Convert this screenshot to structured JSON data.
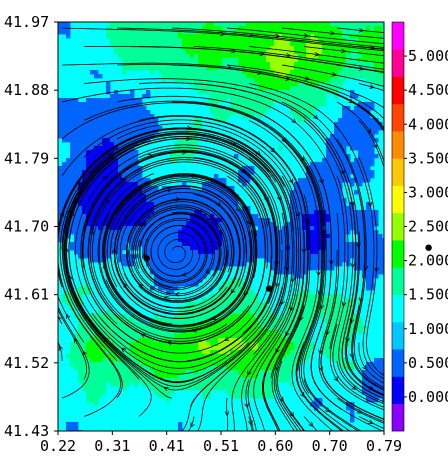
{
  "chart_data": {
    "type": "heatmap",
    "subtype": "field-with-streamlines",
    "title": "",
    "xlabel": "",
    "ylabel": "",
    "xlim": [
      0.22,
      0.79
    ],
    "ylim": [
      41.43,
      41.97
    ],
    "x_ticks": [
      "0.22",
      "0.31",
      "0.41",
      "0.51",
      "0.60",
      "0.70",
      "0.79"
    ],
    "y_ticks": [
      "41.43",
      "41.52",
      "41.61",
      "41.70",
      "41.79",
      "41.88",
      "41.97"
    ],
    "colorbar": {
      "labels": [
        "0.000",
        "0.500",
        "1.000",
        "1.500",
        "2.000",
        "2.500",
        "3.000",
        "3.500",
        "4.000",
        "4.500",
        "5.000"
      ],
      "min": -0.5,
      "max": 5.5,
      "colors": [
        "#8c00ff",
        "#0000ff",
        "#0064ff",
        "#00c8ff",
        "#00ffff",
        "#00ff96",
        "#00ff00",
        "#96ff00",
        "#ffff00",
        "#ffc800",
        "#ff8c00",
        "#ff4600",
        "#ff0000",
        "#ff0096",
        "#ff00ff"
      ]
    },
    "bands": [
      {
        "level": 0.5,
        "color": "#0000ff"
      },
      {
        "level": 1.0,
        "color": "#0064ff"
      },
      {
        "level": 1.5,
        "color": "#00ffff"
      },
      {
        "level": 2.0,
        "color": "#00ff96"
      },
      {
        "level": 2.5,
        "color": "#00ff00"
      },
      {
        "level": 3.0,
        "color": "#96ff00"
      }
    ],
    "markers": [
      {
        "x": 0.375,
        "y": 41.658
      },
      {
        "x": 0.589,
        "y": 41.618
      },
      {
        "x": 0.868,
        "y": 41.672
      }
    ]
  }
}
